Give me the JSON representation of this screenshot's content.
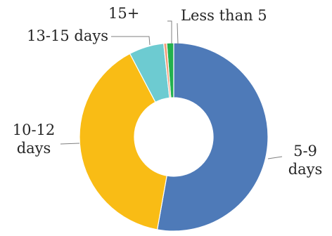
{
  "chart_data": {
    "type": "pie",
    "variant": "donut",
    "categories": [
      "Less than 5",
      "5-9 days",
      "10-12 days",
      "13-15 days",
      "15+"
    ],
    "values": [
      1.2,
      52.8,
      39.5,
      6.0,
      0.5
    ],
    "label_lines": [
      [
        "Less than 5"
      ],
      [
        "5-9",
        "days"
      ],
      [
        "10-12",
        "days"
      ],
      [
        "13-15 days"
      ],
      [
        "15+"
      ]
    ],
    "colors": [
      "#23b14d",
      "#4e7ab8",
      "#f9bc15",
      "#6dcbd1",
      "#f29b76"
    ],
    "legend": "none",
    "data_labels": "category names outside with leader lines"
  }
}
